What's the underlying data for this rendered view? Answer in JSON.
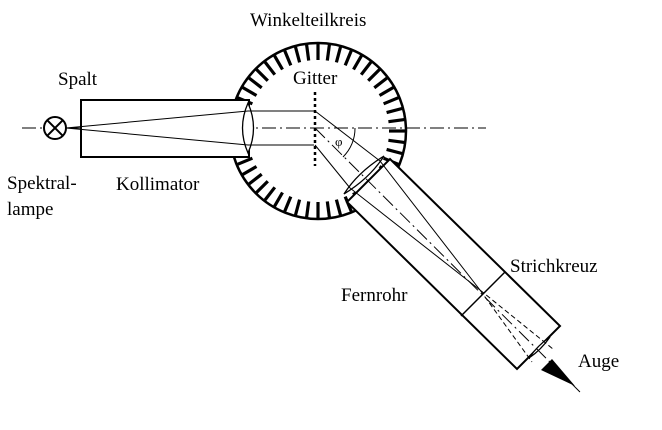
{
  "diagram": {
    "title": "Winkelteilkreis",
    "labels": {
      "gitter": "Gitter",
      "spalt": "Spalt",
      "kollimator": "Kollimator",
      "spektrallampe_1": "Spektral-",
      "spektrallampe_2": "lampe",
      "fernrohr": "Fernrohr",
      "strichkreuz": "Strichkreuz",
      "auge": "Auge",
      "angle": "φ"
    },
    "colors": {
      "ink": "#000000",
      "background": "#ffffff"
    }
  }
}
